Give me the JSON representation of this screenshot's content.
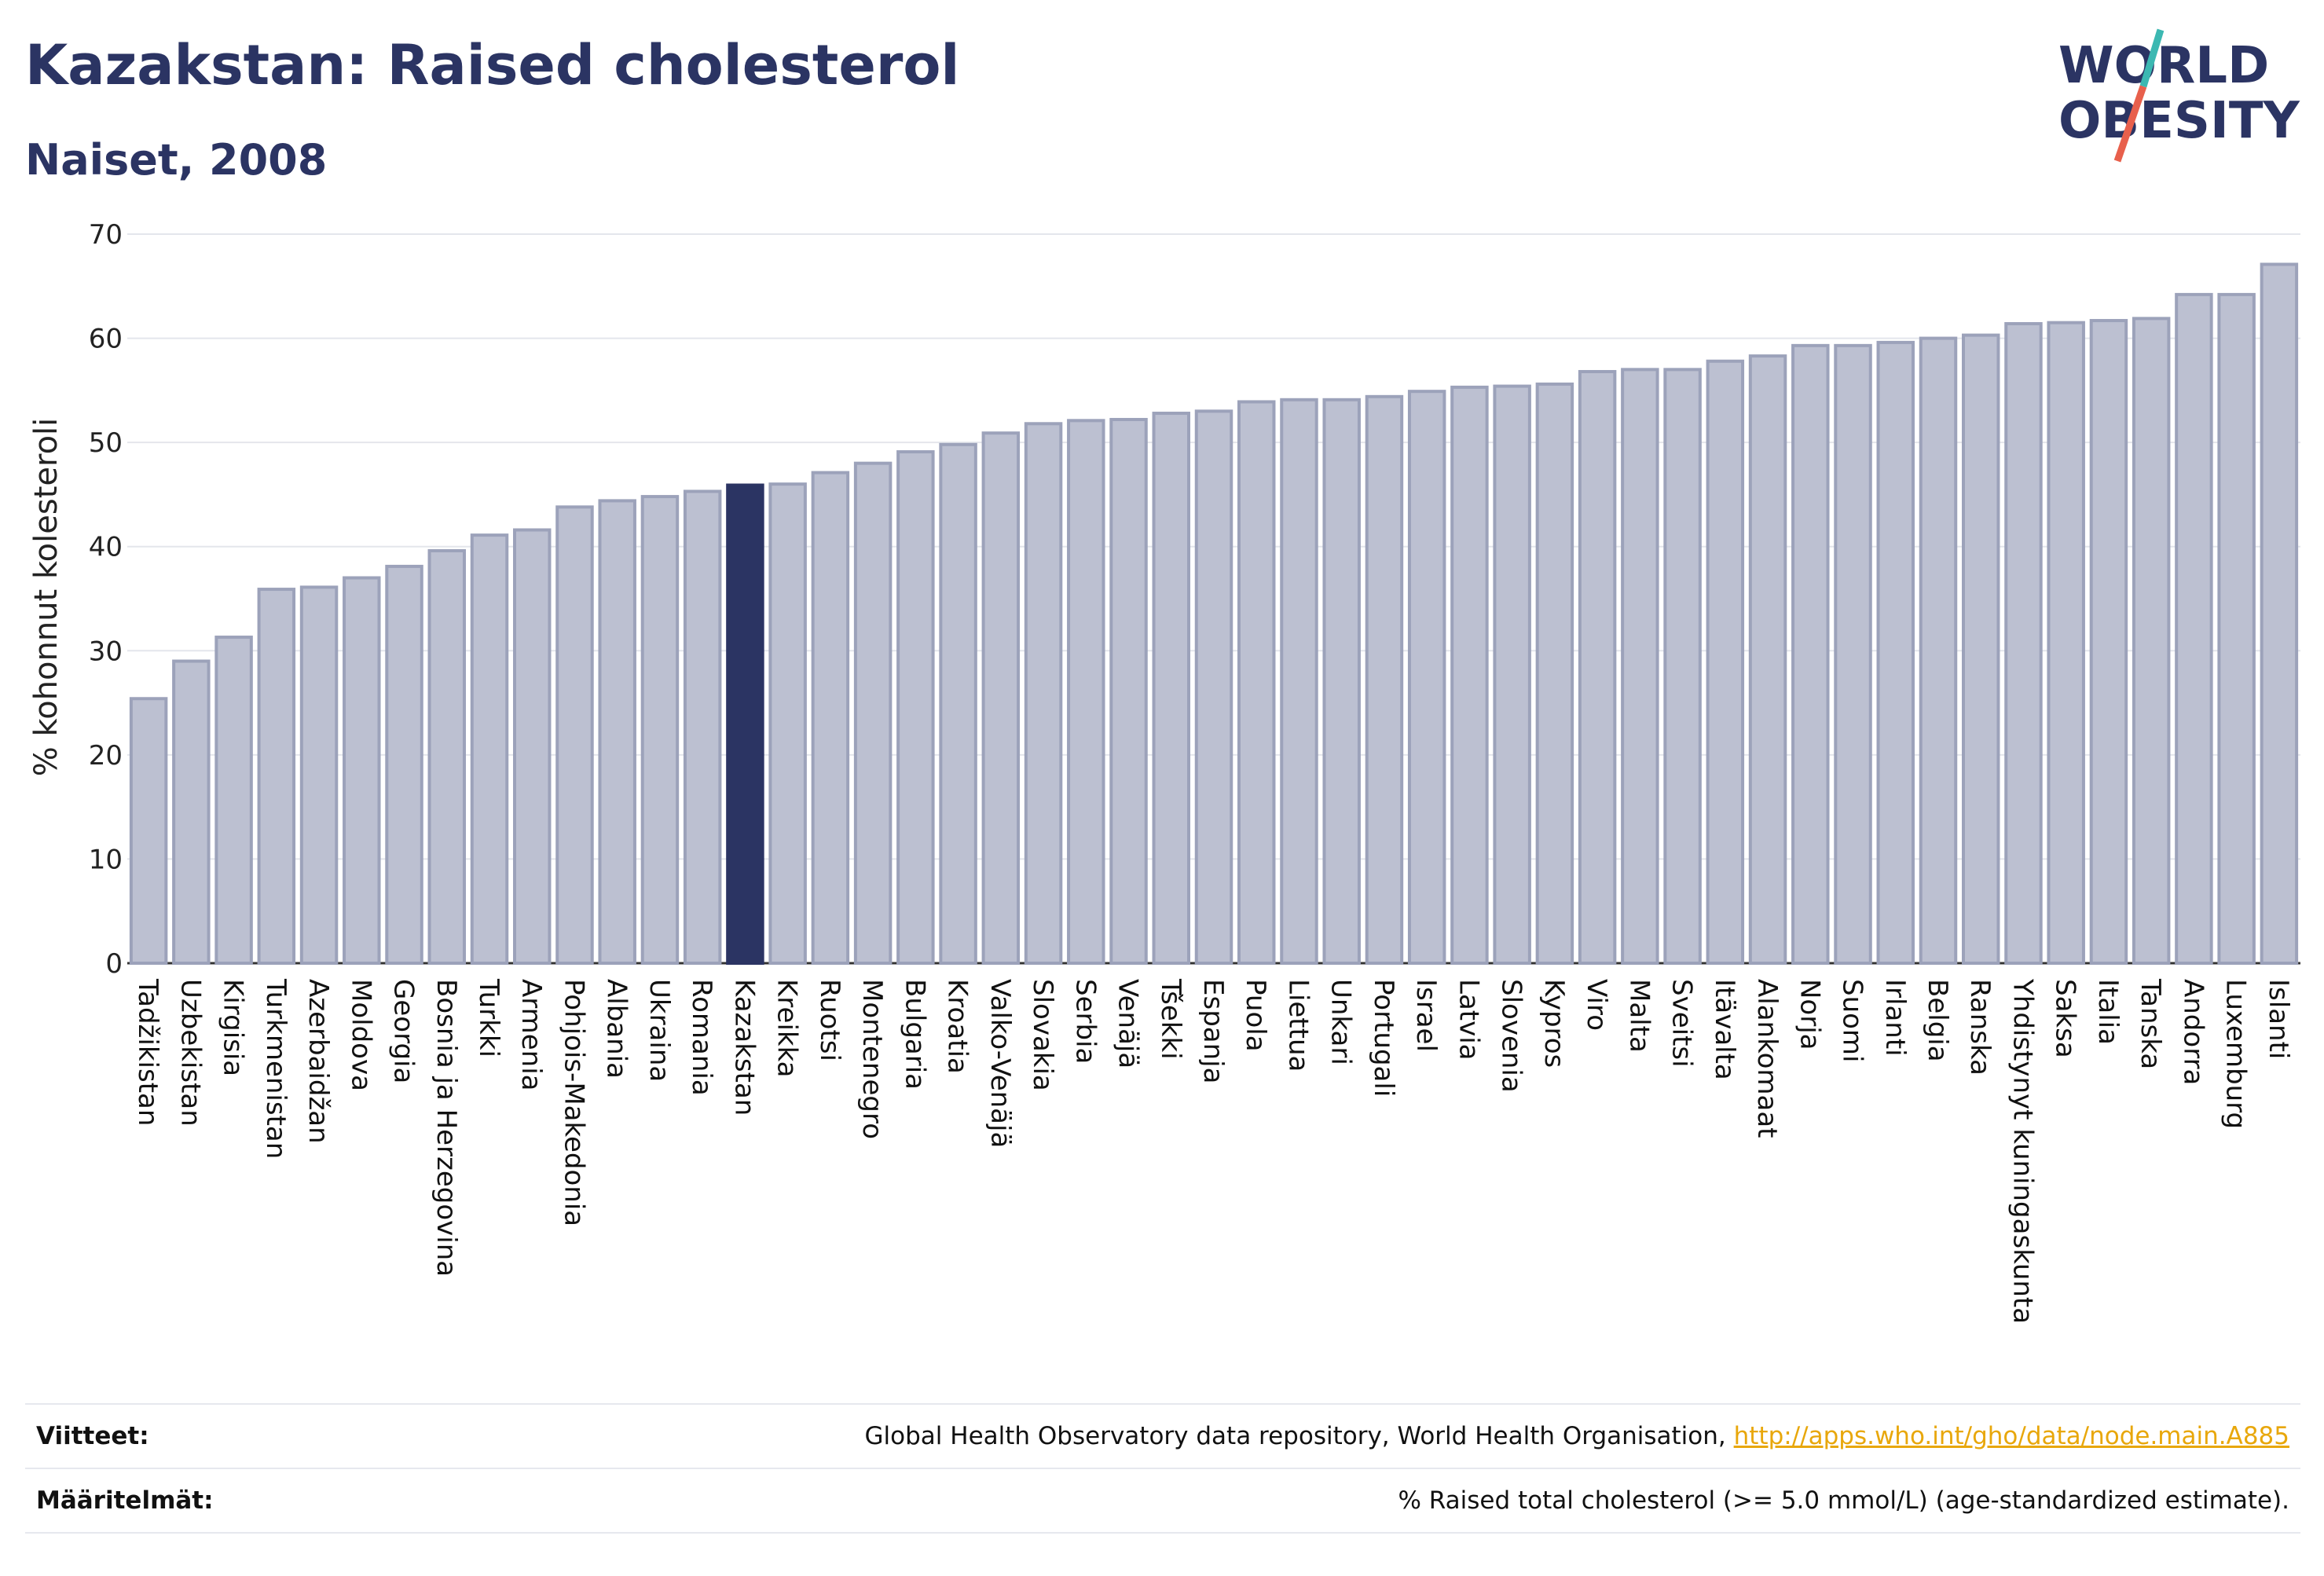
{
  "header": {
    "title": "Kazakstan: Raised cholesterol",
    "subtitle": "Naiset, 2008"
  },
  "logo": {
    "line1": "WORLD",
    "line2": "OBESITY"
  },
  "colors": {
    "bar": "#bcc0d1",
    "bar_border": "#9ca2ba",
    "highlight": "#2b3463",
    "grid": "#e4e6ec",
    "link": "#e8a70b",
    "logo_teal": "#3cb8b2",
    "logo_red": "#e8604c"
  },
  "chart_data": {
    "type": "bar",
    "ylabel": "% kohonnut kolesteroli",
    "ylim": [
      0,
      70
    ],
    "yticks": [
      0,
      10,
      20,
      30,
      40,
      50,
      60,
      70
    ],
    "grid": true,
    "highlight": "Kazakstan",
    "categories": [
      "Tadžikistan",
      "Uzbekistan",
      "Kirgisia",
      "Turkmenistan",
      "Azerbaidžan",
      "Moldova",
      "Georgia",
      "Bosnia ja Herzegovina",
      "Turkki",
      "Armenia",
      "Pohjois-Makedonia",
      "Albania",
      "Ukraina",
      "Romania",
      "Kazakstan",
      "Kreikka",
      "Ruotsi",
      "Montenegro",
      "Bulgaria",
      "Kroatia",
      "Valko-Venäjä",
      "Slovakia",
      "Serbia",
      "Venäjä",
      "Tšekki",
      "Espanja",
      "Puola",
      "Liettua",
      "Unkari",
      "Portugali",
      "Israel",
      "Latvia",
      "Slovenia",
      "Kypros",
      "Viro",
      "Malta",
      "Sveitsi",
      "Itävalta",
      "Alankomaat",
      "Norja",
      "Suomi",
      "Irlanti",
      "Belgia",
      "Ranska",
      "Yhdistynyt kuningaskunta",
      "Saksa",
      "Italia",
      "Tanska",
      "Andorra",
      "Luxemburg",
      "Islanti"
    ],
    "values": [
      25.4,
      29.0,
      31.3,
      35.9,
      36.1,
      37.0,
      38.1,
      39.6,
      41.1,
      41.6,
      43.8,
      44.4,
      44.8,
      45.3,
      45.9,
      46.0,
      47.1,
      48.0,
      49.1,
      49.8,
      50.9,
      51.8,
      52.1,
      52.2,
      52.8,
      53.0,
      53.9,
      54.1,
      54.1,
      54.4,
      54.9,
      55.3,
      55.4,
      55.6,
      56.8,
      57.0,
      57.0,
      57.8,
      58.3,
      59.3,
      59.3,
      59.6,
      60.0,
      60.3,
      61.4,
      61.5,
      61.7,
      61.9,
      64.2,
      64.2,
      67.1
    ]
  },
  "footer": {
    "references_label": "Viitteet:",
    "references_text": "Global Health Observatory data repository, World Health Organisation, ",
    "references_link": "http://apps.who.int/gho/data/node.main.A885",
    "definitions_label": "Määritelmät:",
    "definitions_text": "% Raised total cholesterol (>= 5.0 mmol/L) (age-standardized estimate)."
  }
}
